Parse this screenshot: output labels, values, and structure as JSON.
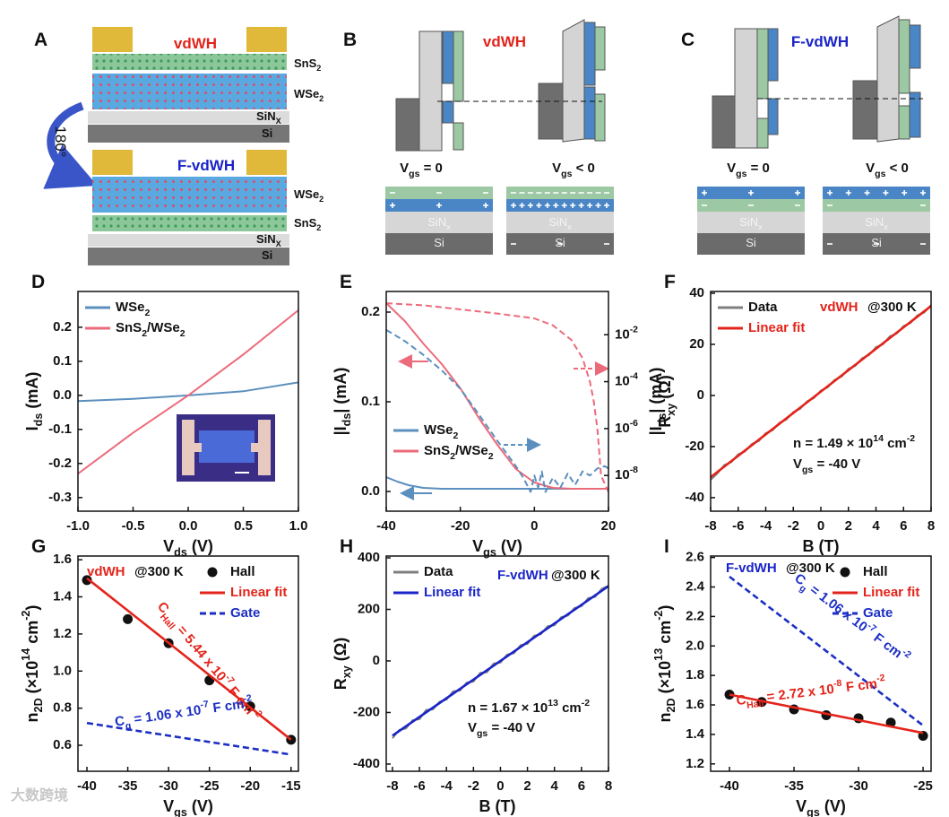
{
  "diagram_a": {
    "letter": "A",
    "top_title": "vdWH",
    "top_layers": [
      "SnS_{2}",
      "WSe_{2}",
      "SiN_{X}",
      "Si"
    ],
    "rotation": "180°",
    "bottom_title": "F-vdWH",
    "bottom_layers": [
      "WSe_{2}",
      "SnS_{2}",
      "SiN_{X}",
      "Si"
    ]
  },
  "diagram_b": {
    "letter": "B",
    "title": "vdWH",
    "states": [
      "V_{gs} = 0",
      "V_{gs} < 0"
    ],
    "stack_layers": [
      "SiN_{x}",
      "Si"
    ]
  },
  "diagram_c": {
    "letter": "C",
    "title": "F-vdWH",
    "states": [
      "V_{gs} = 0",
      "V_{gs} < 0"
    ],
    "stack_layers": [
      "SiN_{x}",
      "Si"
    ]
  },
  "watermark": "大数跨境",
  "chart_data": [
    {
      "type": "line",
      "panel": "D",
      "xlabel": "V_{ds} (V)",
      "ylabel": "I_{ds} (mA)",
      "xlim": [
        -1,
        1
      ],
      "ylim": [
        -0.34,
        0.305
      ],
      "xticks": [
        {
          "value": -1,
          "label": "-1.0"
        },
        {
          "value": -0.5,
          "label": "-0.5"
        },
        {
          "value": 0,
          "label": "0.0"
        },
        {
          "value": 0.5,
          "label": "0.5"
        },
        {
          "value": 1,
          "label": "1.0"
        }
      ],
      "yticks": [
        -0.3,
        -0.2,
        -0.1,
        {
          "value": 0,
          "label": "0.0"
        },
        0.1,
        0.2
      ],
      "legend": "upper left",
      "series": [
        {
          "name": "WSe_{2}",
          "color": "#5b8fbe",
          "style": "solid",
          "x": [
            -1,
            -0.5,
            0,
            0.5,
            1
          ],
          "values": [
            -0.017,
            -0.01,
            0,
            0.012,
            0.038
          ]
        },
        {
          "name": "SnS_{2}/WSe_{2}",
          "color": "#ec6b7b",
          "style": "solid",
          "x": [
            -1,
            -0.5,
            0,
            0.5,
            1
          ],
          "values": [
            -0.23,
            -0.11,
            0,
            0.12,
            0.25
          ]
        }
      ]
    },
    {
      "type": "line",
      "panel": "E",
      "xlabel": "V_{gs} (V)",
      "ylabel": "|I_{ds}| (mA)",
      "y2label": "|I_{ds}| (mA)",
      "xlim": [
        -40,
        20
      ],
      "ylim": [
        -0.022,
        0.223
      ],
      "y2lim": [
        3e-10,
        0.7
      ],
      "y2log": true,
      "xticks": [
        -40,
        -20,
        0,
        20
      ],
      "yticks": [
        {
          "value": 0,
          "label": "0.0"
        },
        0.1,
        0.2
      ],
      "y2ticks": [
        {
          "value": 1e-08,
          "label": "10^{-8}"
        },
        {
          "value": 1e-06,
          "label": "10^{-6}"
        },
        {
          "value": 0.0001,
          "label": "10^{-4}"
        },
        {
          "value": 0.01,
          "label": "10^{-2}"
        }
      ],
      "legend": "lower left",
      "series": [
        {
          "name": "WSe_{2}",
          "color": "#5b8fbe",
          "style": "solid",
          "x": [
            -40,
            -37,
            -34,
            -30,
            -25,
            -20,
            -10,
            0,
            10,
            20
          ],
          "values": [
            0.016,
            0.011,
            0.007,
            0.004,
            0.003,
            0.003,
            0.003,
            0.003,
            0.003,
            0.003
          ]
        },
        {
          "name": "SnS_{2}/WSe_{2}",
          "color": "#ec6b7b",
          "style": "solid",
          "x": [
            -40,
            -35,
            -30,
            -25,
            -20,
            -15,
            -10,
            -5,
            0,
            5,
            10,
            15,
            20
          ],
          "values": [
            0.21,
            0.19,
            0.165,
            0.142,
            0.115,
            0.082,
            0.052,
            0.025,
            0.01,
            0.004,
            0.003,
            0.003,
            0.003
          ]
        },
        {
          "color": "#ec6b7b",
          "style": "dashed",
          "axis": "y2",
          "x": [
            -40,
            -30,
            -20,
            -10,
            0,
            5,
            10,
            13,
            15,
            16,
            17,
            17.5,
            18,
            20
          ],
          "values": [
            0.22,
            0.18,
            0.12,
            0.08,
            0.05,
            0.025,
            0.006,
            0.001,
            0.0001,
            1.5e-05,
            1e-06,
            1e-07,
            1e-08,
            2e-09
          ]
        },
        {
          "color": "#5b8fbe",
          "style": "dashed",
          "axis": "y2",
          "x": [
            -40,
            -35,
            -30,
            -25,
            -20,
            -15,
            -10,
            -5,
            -3,
            -1,
            0,
            1,
            2,
            3,
            5,
            7,
            9,
            11,
            13,
            15,
            17,
            19,
            20
          ],
          "values": [
            0.016,
            0.0054,
            0.0014,
            0.0003,
            5e-05,
            4e-06,
            3e-07,
            2.5e-08,
            8e-09,
            2e-09,
            1e-08,
            3e-09,
            1.5e-08,
            2e-09,
            8e-09,
            3e-09,
            1.2e-08,
            4e-09,
            1.5e-08,
            1e-08,
            2e-08,
            2.5e-08,
            2e-08
          ]
        }
      ]
    },
    {
      "type": "line",
      "panel": "F",
      "xlabel": "B (T)",
      "ylabel": "R_{xy} (Ω)",
      "xlim": [
        -8,
        8
      ],
      "ylim": [
        -45.3,
        40.7
      ],
      "xticks": [
        -8,
        -6,
        -4,
        -2,
        0,
        2,
        4,
        6,
        8
      ],
      "yticks": [
        -40,
        -20,
        0,
        20,
        40
      ],
      "legend": "upper left",
      "annotations": [
        {
          "text": "vdWH",
          "color": "#e3241b"
        },
        {
          "text": "@300 K"
        },
        {
          "text": "n = 1.49 × 10^{14} cm^{-2}"
        },
        {
          "text": "V_{gs} = -40 V"
        }
      ],
      "series": [
        {
          "name": "Data",
          "color": "#7f7f7f",
          "style": "solid",
          "x": [
            -8,
            -7.5,
            -7,
            -6.5,
            -6,
            -5.5,
            -5,
            -4.5,
            -4,
            -3.5,
            -3,
            -2.5,
            -2,
            -1.5,
            -1,
            -0.5,
            0,
            0.5,
            1,
            1.5,
            2,
            2.5,
            3,
            3.5,
            4,
            4.5,
            5,
            5.5,
            6,
            6.5,
            7,
            7.5,
            8
          ],
          "values": [
            -33.0,
            -30.5,
            -27.2,
            -26.1,
            -23.0,
            -21.9,
            -19.0,
            -17.8,
            -14.8,
            -13.6,
            -10.7,
            -9.4,
            -6.5,
            -5.2,
            -2.3,
            -1.0,
            1.9,
            3.2,
            6.1,
            7.4,
            10.4,
            11.6,
            14.6,
            15.8,
            18.9,
            20.0,
            23.1,
            24.2,
            27.2,
            28.3,
            31.3,
            32.5,
            35.4
          ]
        },
        {
          "name": "Linear fit",
          "color": "#e3241b",
          "style": "solid",
          "x": [
            -8,
            8
          ],
          "values": [
            -32,
            35
          ]
        }
      ]
    },
    {
      "type": "scatter",
      "panel": "G",
      "xlabel": "V_{gs} (V)",
      "ylabel": "n_{2D} (×10^{14} cm^{-2})",
      "xlim": [
        -41.1,
        -14.1
      ],
      "ylim": [
        0.46,
        1.62
      ],
      "xticks": [
        -40,
        -35,
        -30,
        -25,
        -20,
        -15
      ],
      "yticks": [
        0.6,
        0.8,
        {
          "value": 1,
          "label": "1.0"
        },
        1.2,
        1.4,
        1.6
      ],
      "legend": "upper right",
      "annotations": [
        {
          "text": "vdWH",
          "color": "#e3241b"
        },
        {
          "text": "@300 K"
        },
        {
          "text": "C_{Hall} = 5.44 x 10^{-7} F cm^{-2}",
          "color": "#e3241b"
        },
        {
          "text": "C_{g} = 1.06 x 10^{-7} F cm^{-2}",
          "color": "#1c2fc4"
        }
      ],
      "series": [
        {
          "name": "Hall",
          "color": "#111111",
          "marker": "circle",
          "x": [
            -40,
            -35,
            -30,
            -25,
            -20,
            -15
          ],
          "values": [
            1.49,
            1.28,
            1.15,
            0.95,
            0.81,
            0.63
          ]
        },
        {
          "name": "Linear fit",
          "color": "#e3241b",
          "style": "solid",
          "x": [
            -40,
            -15
          ],
          "values": [
            1.5,
            0.63
          ]
        },
        {
          "name": "Gate",
          "color": "#1c2fc4",
          "style": "dashed",
          "x": [
            -40,
            -15
          ],
          "values": [
            0.72,
            0.55
          ]
        }
      ]
    },
    {
      "type": "line",
      "panel": "H",
      "xlabel": "B (T)",
      "ylabel": "R_{xy} (Ω)",
      "xlim": [
        -8.46,
        8
      ],
      "ylim": [
        -428,
        407
      ],
      "xticks": [
        -8,
        -6,
        -4,
        -2,
        0,
        2,
        4,
        6,
        8
      ],
      "yticks": [
        -400,
        -200,
        0,
        200,
        400
      ],
      "legend": "upper left",
      "annotations": [
        {
          "text": "F-vdWH",
          "color": "#1a24c8"
        },
        {
          "text": "@300 K"
        },
        {
          "text": "n = 1.67 × 10^{13} cm^{-2}"
        },
        {
          "text": "V_{gs} = -40 V"
        }
      ],
      "series": [
        {
          "name": "Data",
          "color": "#7f7f7f",
          "style": "solid",
          "x": [
            -8,
            -7.5,
            -7,
            -6.5,
            -6,
            -5.5,
            -5,
            -4.5,
            -4,
            -3.5,
            -3,
            -2.5,
            -2,
            -1.5,
            -1,
            -0.5,
            0,
            0.5,
            1,
            1.5,
            2,
            2.5,
            3,
            3.5,
            4,
            4.5,
            5,
            5.5,
            6,
            6.5,
            7,
            7.5,
            8
          ],
          "values": [
            -300,
            -268,
            -262,
            -230,
            -226,
            -190,
            -188,
            -158,
            -150,
            -118,
            -115,
            -84,
            -80,
            -46,
            -44,
            -10,
            -6,
            25,
            30,
            62,
            66,
            98,
            104,
            135,
            138,
            170,
            176,
            206,
            212,
            244,
            248,
            280,
            292
          ]
        },
        {
          "name": "Linear fit",
          "color": "#1a24c8",
          "style": "solid",
          "x": [
            -8,
            8
          ],
          "values": [
            -290,
            290
          ]
        }
      ]
    },
    {
      "type": "scatter",
      "panel": "I",
      "xlabel": "V_{gs} (V)",
      "ylabel": "n_{2D} (×10^{13} cm^{-2})",
      "xlim": [
        -41.46,
        -24.38
      ],
      "ylim": [
        1.15,
        2.61
      ],
      "xticks": [
        -40,
        -35,
        -30,
        -25
      ],
      "yticks": [
        1.2,
        1.4,
        1.6,
        1.8,
        {
          "value": 2,
          "label": "2.0"
        },
        2.2,
        2.4,
        2.6
      ],
      "legend": "upper right",
      "annotations": [
        {
          "text": "F-vdWH",
          "color": "#1a24c8"
        },
        {
          "text": "@300 K"
        },
        {
          "text": "C_{g} = 1.06 x 10^{-7} F cm^{-2}",
          "color": "#1c2fc4"
        },
        {
          "text": "C_{Hall} = 2.72 x 10^{-8} F cm^{-2}",
          "color": "#e3241b"
        }
      ],
      "series": [
        {
          "name": "Hall",
          "color": "#111111",
          "marker": "circle",
          "x": [
            -40,
            -37.5,
            -35,
            -32.5,
            -30,
            -27.5,
            -25
          ],
          "values": [
            1.67,
            1.62,
            1.57,
            1.53,
            1.51,
            1.48,
            1.39
          ]
        },
        {
          "name": "Linear fit",
          "color": "#e3241b",
          "style": "solid",
          "x": [
            -40,
            -25
          ],
          "values": [
            1.67,
            1.41
          ]
        },
        {
          "name": "Gate",
          "color": "#1c2fc4",
          "style": "dashed",
          "x": [
            -40,
            -25
          ],
          "values": [
            2.47,
            1.46
          ]
        }
      ]
    }
  ]
}
